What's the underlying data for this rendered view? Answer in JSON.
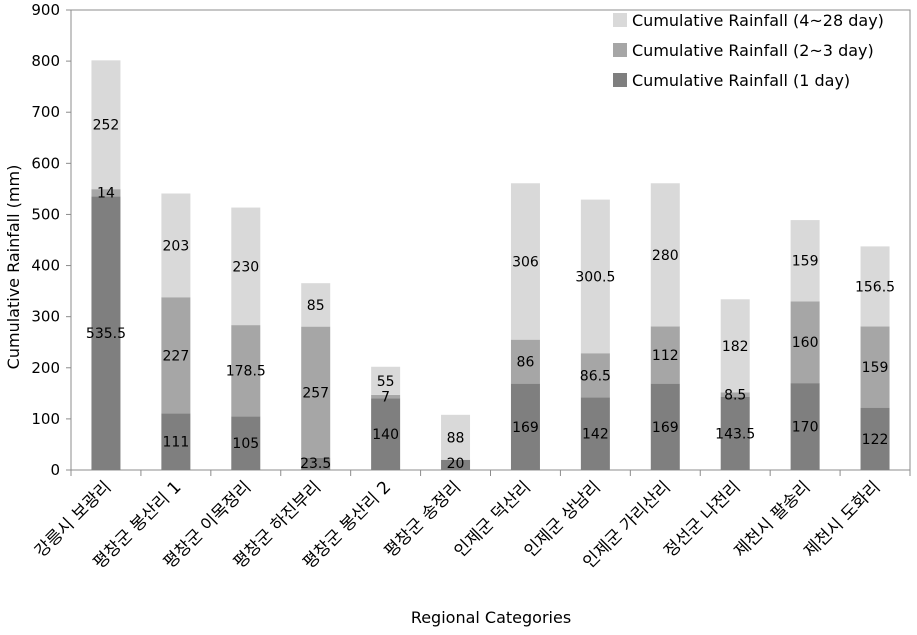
{
  "chart_data": {
    "type": "bar",
    "stacked": true,
    "title": "",
    "xlabel": "Regional Categories",
    "ylabel": "Cumulative Rainfall (mm)",
    "ylim": [
      0,
      900
    ],
    "yticks": [
      0,
      100,
      200,
      300,
      400,
      500,
      600,
      700,
      800,
      900
    ],
    "grid": false,
    "legend_position": "top-right",
    "categories": [
      "강릉시 보광리",
      "평창군 봉산리 1",
      "평창군 이목정리",
      "평창군 하진부리",
      "평창군 봉산리 2",
      "평창군 송정리",
      "인제군 덕산리",
      "인제군 상남리",
      "인제군 가리산리",
      "정선군 나전리",
      "제천시 팔송리",
      "제천시 도화리"
    ],
    "series": [
      {
        "name": "Cumulative Rainfall (1 day)",
        "color": "#7f7f7f",
        "values": [
          535.5,
          111,
          105,
          23.5,
          140,
          20,
          169,
          142,
          169,
          143.5,
          170,
          122
        ],
        "labels": [
          "535.5",
          "111",
          "105",
          "23.5",
          "140",
          "20",
          "169",
          "142",
          "169",
          "143.5",
          "170",
          "122"
        ]
      },
      {
        "name": "Cumulative Rainfall (2~3 day)",
        "color": "#a6a6a6",
        "values": [
          14,
          227,
          178.5,
          257,
          7,
          0,
          86,
          86.5,
          112,
          8.5,
          160,
          159
        ],
        "labels": [
          "14",
          "227",
          "178.5",
          "257",
          "7",
          "",
          "86",
          "86.5",
          "112",
          "8.5",
          "160",
          "159"
        ]
      },
      {
        "name": "Cumulative Rainfall (4~28 day)",
        "color": "#d9d9d9",
        "values": [
          252,
          203,
          230,
          85,
          55,
          88,
          306,
          300.5,
          280,
          182,
          159,
          156.5
        ],
        "labels": [
          "252",
          "203",
          "230",
          "85",
          "55",
          "88",
          "306",
          "300.5",
          "280",
          "182",
          "159",
          "156.5"
        ]
      }
    ]
  }
}
